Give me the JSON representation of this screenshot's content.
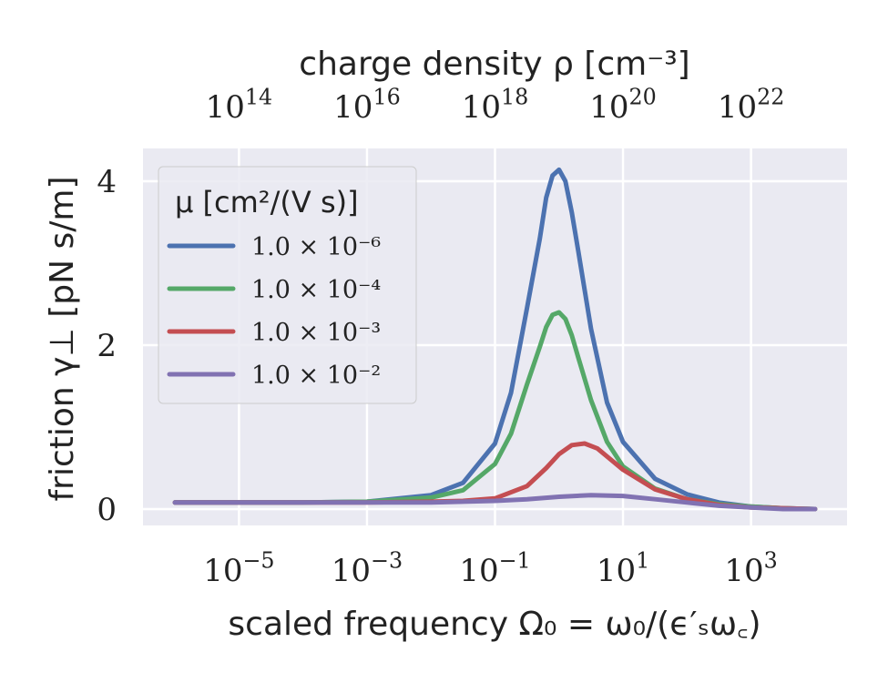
{
  "chart_data": {
    "type": "line",
    "x_scale": "log",
    "xlim_log10": [
      -6.5,
      4.5
    ],
    "ylim": [
      -0.2,
      4.4
    ],
    "x_ticks": [
      {
        "exp": -5,
        "base": "10",
        "sup": "−5"
      },
      {
        "exp": -3,
        "base": "10",
        "sup": "−3"
      },
      {
        "exp": -1,
        "base": "10",
        "sup": "−1"
      },
      {
        "exp": 1,
        "base": "10",
        "sup": "1"
      },
      {
        "exp": 3,
        "base": "10",
        "sup": "3"
      }
    ],
    "y_ticks": [
      {
        "value": 0,
        "label": "0"
      },
      {
        "value": 2,
        "label": "2"
      },
      {
        "value": 4,
        "label": "4"
      }
    ],
    "top_ticks": [
      {
        "exp": -5,
        "base": "10",
        "sup": "14"
      },
      {
        "exp": -3,
        "base": "10",
        "sup": "16"
      },
      {
        "exp": -1,
        "base": "10",
        "sup": "18"
      },
      {
        "exp": 1,
        "base": "10",
        "sup": "20"
      },
      {
        "exp": 3,
        "base": "10",
        "sup": "22"
      }
    ],
    "xlabel": "scaled frequency Ω₀ = ω₀/(ϵ′ₛω꜀)",
    "ylabel": "friction γ⊥ [pN s/m]",
    "top_xlabel": "charge density ρ [cm⁻³]",
    "legend_title": "μ [cm²/(V s)]",
    "legend_position": "upper-left",
    "grid": true,
    "series": [
      {
        "name": "1.0 × 10⁻⁶",
        "color": "#4c72b0",
        "x_log10": [
          -6,
          -5,
          -4,
          -3,
          -2,
          -1.5,
          -1,
          -0.75,
          -0.5,
          -0.3,
          -0.2,
          -0.1,
          0,
          0.1,
          0.2,
          0.3,
          0.5,
          0.75,
          1,
          1.5,
          2,
          2.5,
          3,
          3.5,
          4
        ],
        "y": [
          0.08,
          0.08,
          0.08,
          0.09,
          0.17,
          0.32,
          0.8,
          1.42,
          2.45,
          3.3,
          3.8,
          4.07,
          4.14,
          4.0,
          3.62,
          3.15,
          2.2,
          1.3,
          0.82,
          0.37,
          0.18,
          0.08,
          0.03,
          0.01,
          0.0
        ]
      },
      {
        "name": "1.0 × 10⁻⁴",
        "color": "#55a868",
        "x_log10": [
          -6,
          -5,
          -4,
          -3,
          -2,
          -1.5,
          -1,
          -0.75,
          -0.5,
          -0.3,
          -0.2,
          -0.1,
          0,
          0.1,
          0.2,
          0.3,
          0.5,
          0.75,
          1,
          1.5,
          2,
          2.5,
          3,
          3.5,
          4
        ],
        "y": [
          0.08,
          0.08,
          0.08,
          0.09,
          0.14,
          0.23,
          0.55,
          0.92,
          1.52,
          1.98,
          2.22,
          2.37,
          2.4,
          2.32,
          2.12,
          1.85,
          1.33,
          0.82,
          0.52,
          0.25,
          0.12,
          0.06,
          0.03,
          0.01,
          0.0
        ]
      },
      {
        "name": "1.0 × 10⁻³",
        "color": "#c44e52",
        "x_log10": [
          -6,
          -5,
          -4,
          -3,
          -2,
          -1.5,
          -1,
          -0.5,
          -0.2,
          0,
          0.2,
          0.4,
          0.6,
          1,
          1.5,
          2,
          2.5,
          3,
          3.5,
          4
        ],
        "y": [
          0.08,
          0.08,
          0.08,
          0.08,
          0.09,
          0.1,
          0.13,
          0.28,
          0.5,
          0.67,
          0.78,
          0.8,
          0.74,
          0.48,
          0.24,
          0.12,
          0.05,
          0.02,
          0.01,
          0.0
        ]
      },
      {
        "name": "1.0 × 10⁻²",
        "color": "#8172b2",
        "x_log10": [
          -6,
          -5,
          -4,
          -3,
          -2,
          -1,
          -0.5,
          0,
          0.5,
          1,
          1.5,
          2,
          2.5,
          3,
          3.5,
          4
        ],
        "y": [
          0.08,
          0.08,
          0.08,
          0.08,
          0.08,
          0.1,
          0.12,
          0.15,
          0.17,
          0.16,
          0.12,
          0.08,
          0.04,
          0.02,
          0.0,
          0.0
        ]
      }
    ]
  }
}
